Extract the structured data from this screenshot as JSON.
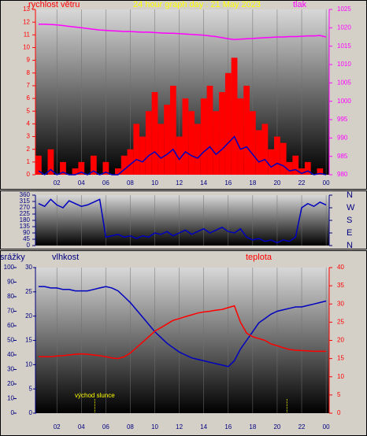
{
  "chart_data": [
    {
      "type": "combo",
      "title": "24 hour graph day : 21 May 2023",
      "y_label": "rychlost větru",
      "y2_label": "tlak",
      "x": [
        0.5,
        1,
        1.5,
        2,
        2.5,
        3,
        3.5,
        4,
        4.5,
        5,
        5.5,
        6,
        6.5,
        7,
        7.5,
        8,
        8.5,
        9,
        9.5,
        10,
        10.5,
        11,
        11.5,
        12,
        12.5,
        13,
        13.5,
        14,
        14.5,
        15,
        15.5,
        16,
        16.5,
        17,
        17.5,
        18,
        18.5,
        19,
        19.5,
        20,
        20.5,
        21,
        21.5,
        22,
        22.5,
        23,
        23.5,
        24
      ],
      "xlim": [
        0.25,
        24.25
      ],
      "xticks": [
        {
          "value": 2,
          "label": "02"
        },
        {
          "value": 4,
          "label": "04"
        },
        {
          "value": 6,
          "label": "06"
        },
        {
          "value": 8,
          "label": "08"
        },
        10,
        12,
        14,
        16,
        18,
        20,
        22,
        {
          "value": 24,
          "label": "00"
        }
      ],
      "ylim": [
        0,
        13
      ],
      "yticks": [
        0,
        1,
        2,
        3,
        4,
        5,
        6,
        7,
        8,
        9,
        10,
        11,
        12,
        13
      ],
      "y2lim": [
        980,
        1025
      ],
      "y2ticks": [
        980,
        985,
        990,
        995,
        1000,
        1005,
        1010,
        1015,
        1020,
        1025
      ],
      "grid": true,
      "series": [
        {
          "color": "#ff0000",
          "style": "bar",
          "values": [
            1.5,
            0,
            2,
            0,
            1,
            0,
            0.5,
            1,
            0,
            1.5,
            0,
            1,
            0,
            0.5,
            1.5,
            2,
            4,
            3,
            5,
            6.5,
            4,
            5.5,
            7,
            3,
            6,
            5,
            4,
            6,
            7,
            5,
            6.5,
            8,
            9.2,
            6,
            7,
            5,
            3.5,
            4,
            2,
            3,
            2.5,
            1,
            1.5,
            0.5,
            1,
            0,
            0.5,
            0
          ]
        },
        {
          "color": "#0000c0",
          "style": "line",
          "values": [
            0.3,
            0,
            0.4,
            0,
            0.2,
            0,
            0,
            0.2,
            0,
            0.3,
            0,
            0.2,
            0,
            0,
            0.4,
            0.8,
            1.2,
            1,
            1.5,
            1.8,
            1.3,
            1.6,
            2,
            1.2,
            1.8,
            1.5,
            1.3,
            1.8,
            2.2,
            1.6,
            2,
            2.5,
            3,
            2,
            2.2,
            1.6,
            1,
            1.2,
            0.6,
            0.9,
            0.7,
            0.3,
            0.4,
            0.1,
            0.3,
            0,
            0.1,
            0
          ]
        },
        {
          "color": "#ff00ff",
          "style": "line",
          "axis": "y2",
          "values": [
            1021,
            1021,
            1020.9,
            1020.8,
            1020.6,
            1020.4,
            1020.2,
            1020,
            1019.8,
            1019.6,
            1019.4,
            1019.3,
            1019.2,
            1019.1,
            1019,
            1019,
            1018.9,
            1018.8,
            1018.8,
            1018.7,
            1018.6,
            1018.5,
            1018.5,
            1018.4,
            1018.3,
            1018.2,
            1018.1,
            1018,
            1017.8,
            1017.6,
            1017.3,
            1017,
            1016.8,
            1016.9,
            1017,
            1017.1,
            1017.2,
            1017.3,
            1017.4,
            1017.5,
            1017.5,
            1017.6,
            1017.6,
            1017.7,
            1017.8,
            1017.8,
            1017.9,
            1017.5
          ]
        }
      ]
    },
    {
      "type": "line",
      "x": [
        0.5,
        1,
        1.5,
        2,
        2.5,
        3,
        3.5,
        4,
        4.5,
        5,
        5.5,
        6,
        6.5,
        7,
        7.5,
        8,
        8.5,
        9,
        9.5,
        10,
        10.5,
        11,
        11.5,
        12,
        12.5,
        13,
        13.5,
        14,
        14.5,
        15,
        15.5,
        16,
        16.5,
        17,
        17.5,
        18,
        18.5,
        19,
        19.5,
        20,
        20.5,
        21,
        21.5,
        22,
        22.5,
        23,
        23.5,
        24
      ],
      "xlim": [
        0.25,
        24.25
      ],
      "xticks": [
        {
          "value": 2,
          "label": "02"
        },
        {
          "value": 4,
          "label": "04"
        },
        {
          "value": 6,
          "label": "06"
        },
        {
          "value": 8,
          "label": "08"
        },
        10,
        12,
        14,
        16,
        18,
        20,
        22,
        {
          "value": 24,
          "label": "00"
        }
      ],
      "ylim": [
        0,
        360
      ],
      "yticks": [
        0,
        45,
        90,
        135,
        180,
        225,
        270,
        315,
        360
      ],
      "y2lim": [
        0,
        360
      ],
      "y2ticks": [
        {
          "value": 360,
          "label": "N"
        },
        {
          "value": 270,
          "label": "W"
        },
        {
          "value": 180,
          "label": "S"
        },
        {
          "value": 90,
          "label": "E"
        },
        {
          "value": 0,
          "label": "N"
        }
      ],
      "grid": true,
      "series": [
        {
          "color": "#0000c0",
          "style": "line",
          "values": [
            300,
            280,
            330,
            290,
            270,
            320,
            300,
            280,
            290,
            310,
            330,
            60,
            70,
            80,
            60,
            70,
            50,
            70,
            60,
            90,
            80,
            100,
            70,
            90,
            110,
            80,
            100,
            120,
            90,
            110,
            130,
            100,
            90,
            120,
            60,
            40,
            50,
            30,
            40,
            20,
            40,
            30,
            60,
            270,
            300,
            280,
            310,
            290
          ]
        }
      ]
    },
    {
      "type": "line",
      "y_label": "vlhkost",
      "y2_label": "teplota",
      "y3_label": "srážky",
      "x": [
        0.5,
        1,
        1.5,
        2,
        2.5,
        3,
        3.5,
        4,
        4.5,
        5,
        5.5,
        6,
        6.5,
        7,
        7.5,
        8,
        8.5,
        9,
        9.5,
        10,
        10.5,
        11,
        11.5,
        12,
        12.5,
        13,
        13.5,
        14,
        14.5,
        15,
        15.5,
        16,
        16.5,
        17,
        17.5,
        18,
        18.5,
        19,
        19.5,
        20,
        20.5,
        21,
        21.5,
        22,
        22.5,
        23,
        23.5,
        24
      ],
      "xlim": [
        0.25,
        24.25
      ],
      "xticks": [
        {
          "value": 2,
          "label": "02"
        },
        {
          "value": 4,
          "label": "04"
        },
        {
          "value": 6,
          "label": "06"
        },
        {
          "value": 8,
          "label": "08"
        },
        10,
        12,
        14,
        16,
        18,
        20,
        22,
        {
          "value": 24,
          "label": "00"
        }
      ],
      "ylim": [
        0,
        100
      ],
      "yticks": [
        0,
        10,
        20,
        30,
        40,
        50,
        60,
        70,
        80,
        90,
        100
      ],
      "y3lim": [
        0,
        30
      ],
      "y3ticks": [
        0,
        5,
        10,
        15,
        20,
        25,
        30
      ],
      "y2lim": [
        0,
        40
      ],
      "y2ticks": [
        0,
        5,
        10,
        15,
        20,
        25,
        30,
        35,
        40
      ],
      "grid": true,
      "annotation": "východ slunce",
      "sun_x": [
        5.1,
        20.8
      ],
      "series": [
        {
          "color": "#0000c0",
          "style": "line",
          "values": [
            87,
            87,
            86,
            86,
            85,
            85,
            84,
            84,
            84,
            85,
            86,
            87,
            86,
            84,
            80,
            76,
            71,
            66,
            61,
            56,
            52,
            48,
            45,
            42,
            40,
            38,
            37,
            36,
            35,
            34,
            33,
            32,
            36,
            44,
            50,
            56,
            62,
            65,
            68,
            70,
            71,
            72,
            73,
            73,
            74,
            75,
            76,
            77
          ]
        },
        {
          "color": "#ff0000",
          "style": "line",
          "axis": "y2",
          "values": [
            15.5,
            15.5,
            15.5,
            15.7,
            15.8,
            16,
            16.2,
            16.3,
            16.2,
            16,
            15.8,
            15.5,
            15.2,
            15,
            15.5,
            16.5,
            18,
            19.5,
            21,
            22.5,
            23.5,
            24.5,
            25.5,
            26,
            26.5,
            27,
            27.5,
            27.8,
            28,
            28.3,
            28.5,
            29,
            29.5,
            25,
            22,
            21,
            20.5,
            20,
            19,
            18.5,
            18,
            17.5,
            17.3,
            17.2,
            17.1,
            17,
            17,
            17
          ]
        }
      ]
    }
  ]
}
